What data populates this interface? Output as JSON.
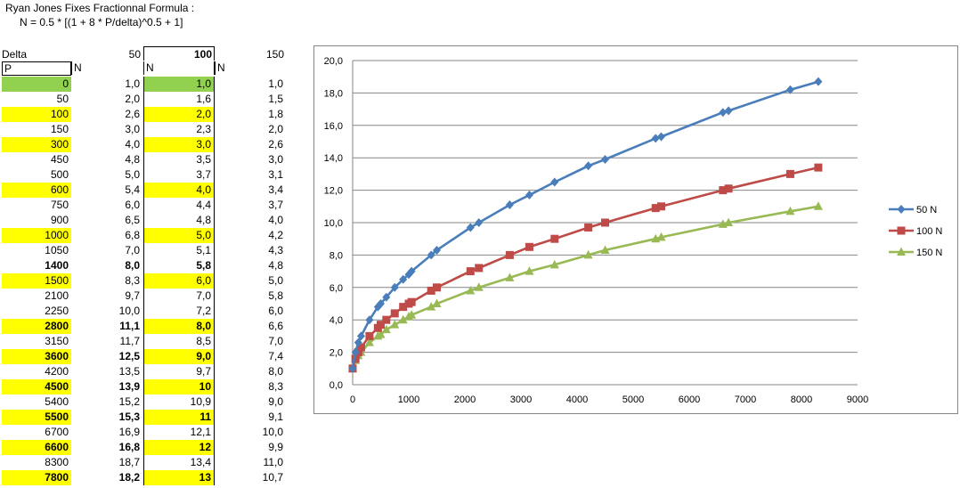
{
  "sheet": {
    "title_line1": "Ryan Jones Fixes Fractionnal Formula :",
    "title_line2": "N = 0.5 * [(1 + 8 * P/delta)^0.5 + 1]",
    "header": {
      "delta": "Delta",
      "d50": "50",
      "d100": "100",
      "d150": "150"
    },
    "subheader": {
      "p": "P",
      "n1": "N",
      "n2": "N",
      "n3": "N"
    },
    "rows": [
      {
        "p": "0",
        "n50": "1,0",
        "n100": "1,0",
        "n150": "1,0",
        "pfill": "green",
        "n100fill": "green",
        "bold": false
      },
      {
        "p": "50",
        "n50": "2,0",
        "n100": "1,6",
        "n150": "1,5",
        "pfill": "",
        "n100fill": "",
        "bold": false
      },
      {
        "p": "100",
        "n50": "2,6",
        "n100": "2,0",
        "n150": "1,8",
        "pfill": "yellow",
        "n100fill": "yellow",
        "bold": false
      },
      {
        "p": "150",
        "n50": "3,0",
        "n100": "2,3",
        "n150": "2,0",
        "pfill": "",
        "n100fill": "",
        "bold": false
      },
      {
        "p": "300",
        "n50": "4,0",
        "n100": "3,0",
        "n150": "2,6",
        "pfill": "yellow",
        "n100fill": "yellow",
        "bold": false
      },
      {
        "p": "450",
        "n50": "4,8",
        "n100": "3,5",
        "n150": "3,0",
        "pfill": "",
        "n100fill": "",
        "bold": false
      },
      {
        "p": "500",
        "n50": "5,0",
        "n100": "3,7",
        "n150": "3,1",
        "pfill": "",
        "n100fill": "",
        "bold": false
      },
      {
        "p": "600",
        "n50": "5,4",
        "n100": "4,0",
        "n150": "3,4",
        "pfill": "yellow",
        "n100fill": "yellow",
        "bold": false
      },
      {
        "p": "750",
        "n50": "6,0",
        "n100": "4,4",
        "n150": "3,7",
        "pfill": "",
        "n100fill": "",
        "bold": false
      },
      {
        "p": "900",
        "n50": "6,5",
        "n100": "4,8",
        "n150": "4,0",
        "pfill": "",
        "n100fill": "",
        "bold": false
      },
      {
        "p": "1000",
        "n50": "6,8",
        "n100": "5,0",
        "n150": "4,2",
        "pfill": "yellow",
        "n100fill": "yellow",
        "bold": false
      },
      {
        "p": "1050",
        "n50": "7,0",
        "n100": "5,1",
        "n150": "4,3",
        "pfill": "",
        "n100fill": "",
        "bold": false
      },
      {
        "p": "1400",
        "n50": "8,0",
        "n100": "5,8",
        "n150": "4,8",
        "pfill": "",
        "n100fill": "",
        "bold": true
      },
      {
        "p": "1500",
        "n50": "8,3",
        "n100": "6,0",
        "n150": "5,0",
        "pfill": "yellow",
        "n100fill": "yellow",
        "bold": false
      },
      {
        "p": "2100",
        "n50": "9,7",
        "n100": "7,0",
        "n150": "5,8",
        "pfill": "",
        "n100fill": "",
        "bold": false
      },
      {
        "p": "2250",
        "n50": "10,0",
        "n100": "7,2",
        "n150": "6,0",
        "pfill": "",
        "n100fill": "",
        "bold": false
      },
      {
        "p": "2800",
        "n50": "11,1",
        "n100": "8,0",
        "n150": "6,6",
        "pfill": "yellow",
        "n100fill": "yellow",
        "bold": true
      },
      {
        "p": "3150",
        "n50": "11,7",
        "n100": "8,5",
        "n150": "7,0",
        "pfill": "",
        "n100fill": "",
        "bold": false
      },
      {
        "p": "3600",
        "n50": "12,5",
        "n100": "9,0",
        "n150": "7,4",
        "pfill": "yellow",
        "n100fill": "yellow",
        "bold": true
      },
      {
        "p": "4200",
        "n50": "13,5",
        "n100": "9,7",
        "n150": "8,0",
        "pfill": "",
        "n100fill": "",
        "bold": false
      },
      {
        "p": "4500",
        "n50": "13,9",
        "n100": "10",
        "n150": "8,3",
        "pfill": "yellow",
        "n100fill": "yellow",
        "bold": true
      },
      {
        "p": "5400",
        "n50": "15,2",
        "n100": "10,9",
        "n150": "9,0",
        "pfill": "",
        "n100fill": "",
        "bold": false
      },
      {
        "p": "5500",
        "n50": "15,3",
        "n100": "11",
        "n150": "9,1",
        "pfill": "yellow",
        "n100fill": "yellow",
        "bold": true
      },
      {
        "p": "6700",
        "n50": "16,9",
        "n100": "12,1",
        "n150": "10,0",
        "pfill": "",
        "n100fill": "",
        "bold": false
      },
      {
        "p": "6600",
        "n50": "16,8",
        "n100": "12",
        "n150": "9,9",
        "pfill": "yellow",
        "n100fill": "yellow",
        "bold": true
      },
      {
        "p": "8300",
        "n50": "18,7",
        "n100": "13,4",
        "n150": "11,0",
        "pfill": "",
        "n100fill": "",
        "bold": false
      },
      {
        "p": "7800",
        "n50": "18,2",
        "n100": "13",
        "n150": "10,7",
        "pfill": "yellow",
        "n100fill": "yellow",
        "bold": true
      }
    ]
  },
  "colors": {
    "green": "#92d050",
    "yellow": "#ffff00"
  },
  "chart_data": {
    "type": "line",
    "title": "",
    "xlabel": "",
    "ylabel": "",
    "xlim": [
      0,
      9000
    ],
    "ylim": [
      0,
      20
    ],
    "x_ticks": [
      "0",
      "1000",
      "2000",
      "3000",
      "4000",
      "5000",
      "6000",
      "7000",
      "8000",
      "9000"
    ],
    "y_ticks": [
      "0,0",
      "2,0",
      "4,0",
      "6,0",
      "8,0",
      "10,0",
      "12,0",
      "14,0",
      "16,0",
      "18,0",
      "20,0"
    ],
    "grid": "horizontal",
    "legend_position": "right",
    "series": [
      {
        "name": "50 N",
        "color": "#4a7ebb",
        "marker": "diamond",
        "points": [
          [
            0,
            1.0
          ],
          [
            50,
            2.0
          ],
          [
            100,
            2.6
          ],
          [
            150,
            3.0
          ],
          [
            300,
            4.0
          ],
          [
            450,
            4.8
          ],
          [
            500,
            5.0
          ],
          [
            600,
            5.4
          ],
          [
            750,
            6.0
          ],
          [
            900,
            6.5
          ],
          [
            1000,
            6.8
          ],
          [
            1050,
            7.0
          ],
          [
            1400,
            8.0
          ],
          [
            1500,
            8.3
          ],
          [
            2100,
            9.7
          ],
          [
            2250,
            10.0
          ],
          [
            2800,
            11.1
          ],
          [
            3150,
            11.7
          ],
          [
            3600,
            12.5
          ],
          [
            4200,
            13.5
          ],
          [
            4500,
            13.9
          ],
          [
            5400,
            15.2
          ],
          [
            5500,
            15.3
          ],
          [
            6600,
            16.8
          ],
          [
            6700,
            16.9
          ],
          [
            7800,
            18.2
          ],
          [
            8300,
            18.7
          ]
        ]
      },
      {
        "name": "100 N",
        "color": "#be4b48",
        "marker": "square",
        "points": [
          [
            0,
            1.0
          ],
          [
            50,
            1.6
          ],
          [
            100,
            2.0
          ],
          [
            150,
            2.3
          ],
          [
            300,
            3.0
          ],
          [
            450,
            3.5
          ],
          [
            500,
            3.7
          ],
          [
            600,
            4.0
          ],
          [
            750,
            4.4
          ],
          [
            900,
            4.8
          ],
          [
            1000,
            5.0
          ],
          [
            1050,
            5.1
          ],
          [
            1400,
            5.8
          ],
          [
            1500,
            6.0
          ],
          [
            2100,
            7.0
          ],
          [
            2250,
            7.2
          ],
          [
            2800,
            8.0
          ],
          [
            3150,
            8.5
          ],
          [
            3600,
            9.0
          ],
          [
            4200,
            9.7
          ],
          [
            4500,
            10.0
          ],
          [
            5400,
            10.9
          ],
          [
            5500,
            11.0
          ],
          [
            6600,
            12.0
          ],
          [
            6700,
            12.1
          ],
          [
            7800,
            13.0
          ],
          [
            8300,
            13.4
          ]
        ]
      },
      {
        "name": "150 N",
        "color": "#98b954",
        "marker": "triangle",
        "points": [
          [
            0,
            1.0
          ],
          [
            50,
            1.5
          ],
          [
            100,
            1.8
          ],
          [
            150,
            2.0
          ],
          [
            300,
            2.6
          ],
          [
            450,
            3.0
          ],
          [
            500,
            3.1
          ],
          [
            600,
            3.4
          ],
          [
            750,
            3.7
          ],
          [
            900,
            4.0
          ],
          [
            1000,
            4.2
          ],
          [
            1050,
            4.3
          ],
          [
            1400,
            4.8
          ],
          [
            1500,
            5.0
          ],
          [
            2100,
            5.8
          ],
          [
            2250,
            6.0
          ],
          [
            2800,
            6.6
          ],
          [
            3150,
            7.0
          ],
          [
            3600,
            7.4
          ],
          [
            4200,
            8.0
          ],
          [
            4500,
            8.3
          ],
          [
            5400,
            9.0
          ],
          [
            5500,
            9.1
          ],
          [
            6600,
            9.9
          ],
          [
            6700,
            10.0
          ],
          [
            7800,
            10.7
          ],
          [
            8300,
            11.0
          ]
        ]
      }
    ]
  }
}
